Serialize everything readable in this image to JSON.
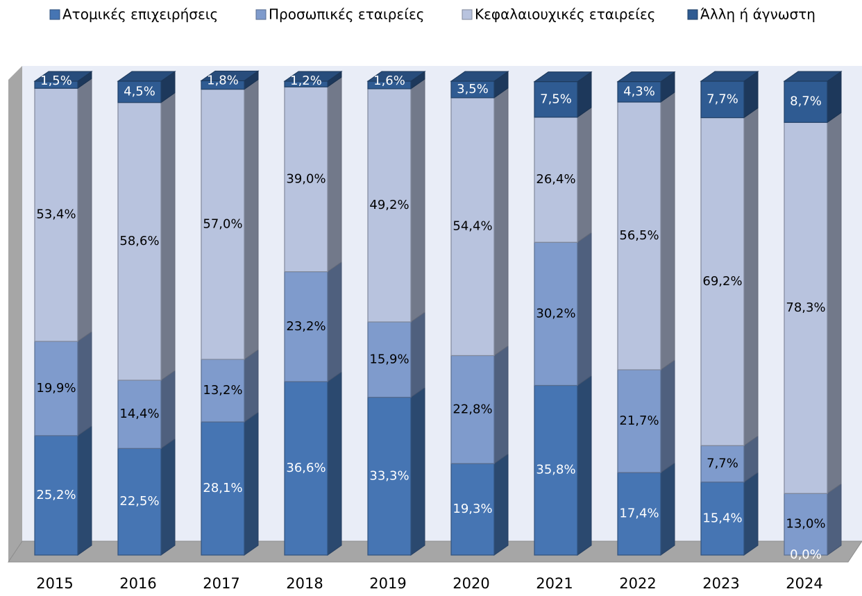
{
  "chart_data": {
    "type": "bar",
    "stacked": true,
    "categories": [
      "2015",
      "2016",
      "2017",
      "2018",
      "2019",
      "2020",
      "2021",
      "2022",
      "2023",
      "2024"
    ],
    "ylim": [
      0,
      100
    ],
    "series": [
      {
        "name": "Ατομικές επιχειρήσεις",
        "color": "#4675b3",
        "label_color": "#ffffff",
        "values": [
          25.2,
          22.5,
          28.1,
          36.6,
          33.3,
          19.3,
          35.8,
          17.4,
          15.4,
          0.0
        ],
        "value_labels": [
          "25,2%",
          "22,5%",
          "28,1%",
          "36,6%",
          "33,3%",
          "19,3%",
          "35,8%",
          "17,4%",
          "15,4%",
          "0,0%"
        ]
      },
      {
        "name": "Προσωπικές εταιρείες",
        "color": "#7f9bcc",
        "label_color": "#000000",
        "values": [
          19.9,
          14.4,
          13.2,
          23.2,
          15.9,
          22.8,
          30.2,
          21.7,
          7.7,
          13.0
        ],
        "value_labels": [
          "19,9%",
          "14,4%",
          "13,2%",
          "23,2%",
          "15,9%",
          "22,8%",
          "30,2%",
          "21,7%",
          "7,7%",
          "13,0%"
        ]
      },
      {
        "name": "Κεφαλαιουχικές εταιρείες",
        "color": "#b8c3de",
        "label_color": "#000000",
        "values": [
          53.4,
          58.6,
          57.0,
          39.0,
          49.2,
          54.4,
          26.4,
          56.5,
          69.2,
          78.3
        ],
        "value_labels": [
          "53,4%",
          "58,6%",
          "57,0%",
          "39,0%",
          "49,2%",
          "54,4%",
          "26,4%",
          "56,5%",
          "69,2%",
          "78,3%"
        ]
      },
      {
        "name": "Άλλη ή άγνωστη",
        "color": "#2f5b92",
        "label_color": "#ffffff",
        "values": [
          1.5,
          4.5,
          1.8,
          1.2,
          1.6,
          3.5,
          7.5,
          4.3,
          7.7,
          8.7
        ],
        "value_labels": [
          "1,5%",
          "4,5%",
          "1,8%",
          "1,2%",
          "1,6%",
          "3,5%",
          "7,5%",
          "4,3%",
          "7,7%",
          "8,7%"
        ]
      }
    ]
  }
}
